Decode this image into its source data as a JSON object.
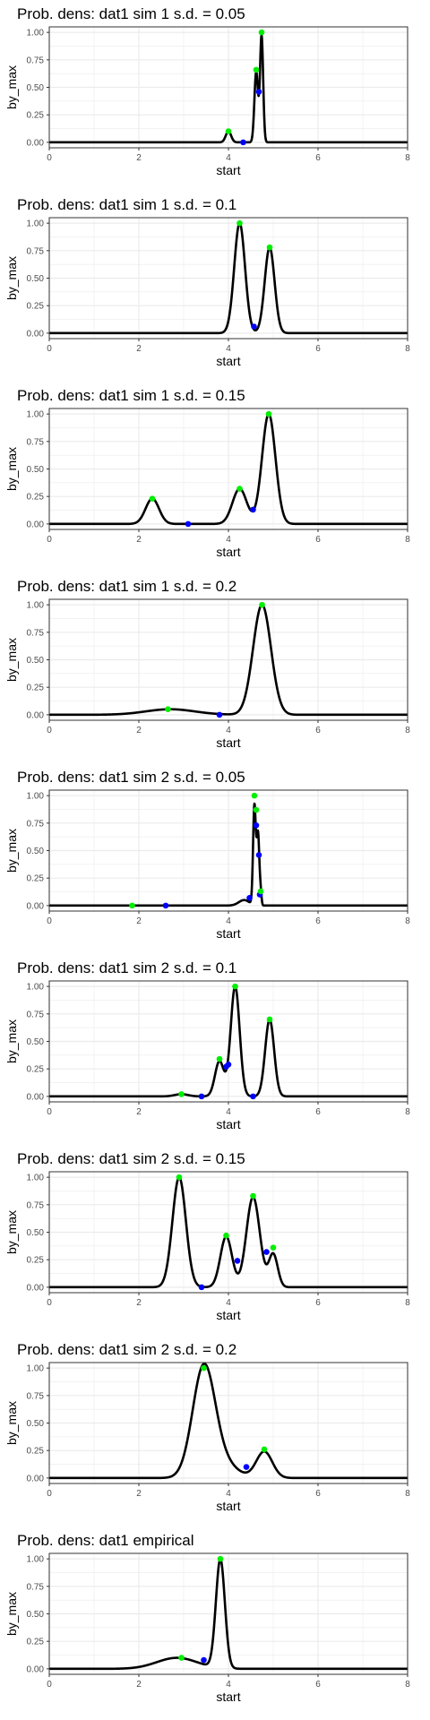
{
  "colors": {
    "curve": "#000000",
    "peak": "#00ee00",
    "valley": "#0000ff",
    "grid": "#ebebeb",
    "panel_border": "#333333"
  },
  "chart_data": [
    {
      "type": "line",
      "title": "Prob. dens: dat1 sim 1 s.d. = 0.05",
      "xlabel": "start",
      "ylabel": "by_max",
      "xlim": [
        0,
        8
      ],
      "ylim": [
        0,
        1
      ],
      "xticks": [
        0,
        2,
        4,
        6,
        8
      ],
      "xtick_labels": [
        "0",
        "2",
        "4",
        "6",
        "8"
      ],
      "yticks": [
        0,
        0.25,
        0.5,
        0.75,
        1
      ],
      "ytick_labels": [
        "0.00",
        "0.25",
        "0.50",
        "0.75",
        "1.00"
      ],
      "grid": true,
      "legend": "none",
      "components": [
        [
          4.0,
          0.1,
          0.06
        ],
        [
          4.62,
          0.64,
          0.04
        ],
        [
          4.74,
          0.97,
          0.035
        ]
      ],
      "peaks": [
        [
          4.0,
          0.1
        ],
        [
          4.62,
          0.66
        ],
        [
          4.74,
          1.0
        ]
      ],
      "valleys": [
        [
          4.33,
          0.0
        ],
        [
          4.68,
          0.46
        ]
      ]
    },
    {
      "type": "line",
      "title": "Prob. dens: dat1 sim 1 s.d. = 0.1",
      "xlabel": "start",
      "ylabel": "by_max",
      "xlim": [
        0,
        8
      ],
      "ylim": [
        0,
        1
      ],
      "xticks": [
        0,
        2,
        4,
        6,
        8
      ],
      "xtick_labels": [
        "0",
        "2",
        "4",
        "6",
        "8"
      ],
      "yticks": [
        0,
        0.25,
        0.5,
        0.75,
        1
      ],
      "ytick_labels": [
        "0.00",
        "0.25",
        "0.50",
        "0.75",
        "1.00"
      ],
      "grid": true,
      "legend": "none",
      "components": [
        [
          4.25,
          1.0,
          0.12
        ],
        [
          4.92,
          0.78,
          0.11
        ]
      ],
      "peaks": [
        [
          4.25,
          1.0
        ],
        [
          4.92,
          0.78
        ]
      ],
      "valleys": [
        [
          4.57,
          0.06
        ]
      ]
    },
    {
      "type": "line",
      "title": "Prob. dens: dat1 sim 1 s.d. = 0.15",
      "xlabel": "start",
      "ylabel": "by_max",
      "xlim": [
        0,
        8
      ],
      "ylim": [
        0,
        1
      ],
      "xticks": [
        0,
        2,
        4,
        6,
        8
      ],
      "xtick_labels": [
        "0",
        "2",
        "4",
        "6",
        "8"
      ],
      "yticks": [
        0,
        0.25,
        0.5,
        0.75,
        1
      ],
      "ytick_labels": [
        "0.00",
        "0.25",
        "0.50",
        "0.75",
        "1.00"
      ],
      "grid": true,
      "legend": "none",
      "components": [
        [
          2.3,
          0.23,
          0.15
        ],
        [
          4.25,
          0.32,
          0.16
        ],
        [
          4.9,
          1.0,
          0.15
        ]
      ],
      "peaks": [
        [
          2.3,
          0.23
        ],
        [
          4.25,
          0.32
        ],
        [
          4.9,
          1.0
        ]
      ],
      "valleys": [
        [
          3.1,
          0.0
        ],
        [
          4.55,
          0.13
        ]
      ]
    },
    {
      "type": "line",
      "title": "Prob. dens: dat1 sim 1 s.d. = 0.2",
      "xlabel": "start",
      "ylabel": "by_max",
      "xlim": [
        0,
        8
      ],
      "ylim": [
        0,
        1
      ],
      "xticks": [
        0,
        2,
        4,
        6,
        8
      ],
      "xtick_labels": [
        "0",
        "2",
        "4",
        "6",
        "8"
      ],
      "yticks": [
        0,
        0.25,
        0.5,
        0.75,
        1
      ],
      "ytick_labels": [
        "0.00",
        "0.25",
        "0.50",
        "0.75",
        "1.00"
      ],
      "grid": true,
      "legend": "none",
      "components": [
        [
          2.7,
          0.05,
          0.55
        ],
        [
          4.75,
          1.0,
          0.2
        ]
      ],
      "peaks": [
        [
          2.65,
          0.05
        ],
        [
          4.75,
          1.0
        ]
      ],
      "valleys": [
        [
          3.8,
          0.0
        ]
      ]
    },
    {
      "type": "line",
      "title": "Prob. dens: dat1 sim 2 s.d. = 0.05",
      "xlabel": "start",
      "ylabel": "by_max",
      "xlim": [
        0,
        8
      ],
      "ylim": [
        0,
        1
      ],
      "xticks": [
        0,
        2,
        4,
        6,
        8
      ],
      "xtick_labels": [
        "0",
        "2",
        "4",
        "6",
        "8"
      ],
      "yticks": [
        0,
        0.25,
        0.5,
        0.75,
        1
      ],
      "ytick_labels": [
        "0.00",
        "0.25",
        "0.50",
        "0.75",
        "1.00"
      ],
      "grid": true,
      "legend": "none",
      "components": [
        [
          4.35,
          0.05,
          0.12
        ],
        [
          4.58,
          0.9,
          0.03
        ],
        [
          4.66,
          0.65,
          0.03
        ],
        [
          4.72,
          0.1,
          0.02
        ]
      ],
      "peaks": [
        [
          1.85,
          0.0
        ],
        [
          4.58,
          1.0
        ],
        [
          4.62,
          0.87
        ],
        [
          4.72,
          0.13
        ]
      ],
      "valleys": [
        [
          2.6,
          0.0
        ],
        [
          4.47,
          0.07
        ],
        [
          4.62,
          0.73
        ],
        [
          4.68,
          0.46
        ],
        [
          4.7,
          0.1
        ]
      ]
    },
    {
      "type": "line",
      "title": "Prob. dens: dat1 sim 2 s.d. = 0.1",
      "xlabel": "start",
      "ylabel": "by_max",
      "xlim": [
        0,
        8
      ],
      "ylim": [
        0,
        1
      ],
      "xticks": [
        0,
        2,
        4,
        6,
        8
      ],
      "xtick_labels": [
        "0",
        "2",
        "4",
        "6",
        "8"
      ],
      "yticks": [
        0,
        0.25,
        0.5,
        0.75,
        1
      ],
      "ytick_labels": [
        "0.00",
        "0.25",
        "0.50",
        "0.75",
        "1.00"
      ],
      "grid": true,
      "legend": "none",
      "components": [
        [
          2.95,
          0.02,
          0.15
        ],
        [
          3.8,
          0.32,
          0.1
        ],
        [
          4.15,
          1.0,
          0.1
        ],
        [
          4.92,
          0.7,
          0.1
        ]
      ],
      "peaks": [
        [
          2.95,
          0.02
        ],
        [
          3.8,
          0.34
        ],
        [
          4.15,
          1.0
        ],
        [
          4.92,
          0.7
        ]
      ],
      "valleys": [
        [
          3.4,
          0.0
        ],
        [
          3.95,
          0.27
        ],
        [
          4.55,
          0.0
        ],
        [
          4.0,
          0.29
        ]
      ]
    },
    {
      "type": "line",
      "title": "Prob. dens: dat1 sim 2 s.d. = 0.15",
      "xlabel": "start",
      "ylabel": "by_max",
      "xlim": [
        0,
        8
      ],
      "ylim": [
        0,
        1
      ],
      "xticks": [
        0,
        2,
        4,
        6,
        8
      ],
      "xtick_labels": [
        "0",
        "2",
        "4",
        "6",
        "8"
      ],
      "yticks": [
        0,
        0.25,
        0.5,
        0.75,
        1
      ],
      "ytick_labels": [
        "0.00",
        "0.25",
        "0.50",
        "0.75",
        "1.00"
      ],
      "grid": true,
      "legend": "none",
      "components": [
        [
          2.9,
          1.0,
          0.15
        ],
        [
          3.95,
          0.46,
          0.13
        ],
        [
          4.55,
          0.82,
          0.15
        ],
        [
          5.0,
          0.3,
          0.1
        ]
      ],
      "peaks": [
        [
          2.9,
          1.0
        ],
        [
          3.95,
          0.47
        ],
        [
          4.55,
          0.83
        ],
        [
          5.0,
          0.36
        ]
      ],
      "valleys": [
        [
          3.4,
          0.0
        ],
        [
          4.2,
          0.24
        ],
        [
          4.85,
          0.32
        ]
      ]
    },
    {
      "type": "line",
      "title": "Prob. dens: dat1 sim 2 s.d. = 0.2",
      "xlabel": "start",
      "ylabel": "by_max",
      "xlim": [
        0,
        8
      ],
      "ylim": [
        0,
        1
      ],
      "xticks": [
        0,
        2,
        4,
        6,
        8
      ],
      "xtick_labels": [
        "0",
        "2",
        "4",
        "6",
        "8"
      ],
      "yticks": [
        0,
        0.25,
        0.5,
        0.75,
        1
      ],
      "ytick_labels": [
        "0.00",
        "0.25",
        "0.50",
        "0.75",
        "1.00"
      ],
      "grid": true,
      "legend": "none",
      "components": [
        [
          3.45,
          1.0,
          0.25
        ],
        [
          3.9,
          0.12,
          0.3
        ],
        [
          4.8,
          0.24,
          0.18
        ]
      ],
      "peaks": [
        [
          3.45,
          1.0
        ],
        [
          4.8,
          0.26
        ]
      ],
      "valleys": [
        [
          4.4,
          0.1
        ]
      ]
    },
    {
      "type": "line",
      "title": "Prob. dens: dat1 empirical",
      "xlabel": "start",
      "ylabel": "by_max",
      "xlim": [
        0,
        8
      ],
      "ylim": [
        0,
        1
      ],
      "xticks": [
        0,
        2,
        4,
        6,
        8
      ],
      "xtick_labels": [
        "0",
        "2",
        "4",
        "6",
        "8"
      ],
      "yticks": [
        0,
        0.25,
        0.5,
        0.75,
        1
      ],
      "ytick_labels": [
        "0.00",
        "0.25",
        "0.50",
        "0.75",
        "1.00"
      ],
      "grid": true,
      "legend": "none",
      "components": [
        [
          2.85,
          0.1,
          0.45
        ],
        [
          3.82,
          0.99,
          0.1
        ]
      ],
      "peaks": [
        [
          2.95,
          0.1
        ],
        [
          3.82,
          1.0
        ]
      ],
      "valleys": [
        [
          3.45,
          0.08
        ]
      ]
    }
  ]
}
